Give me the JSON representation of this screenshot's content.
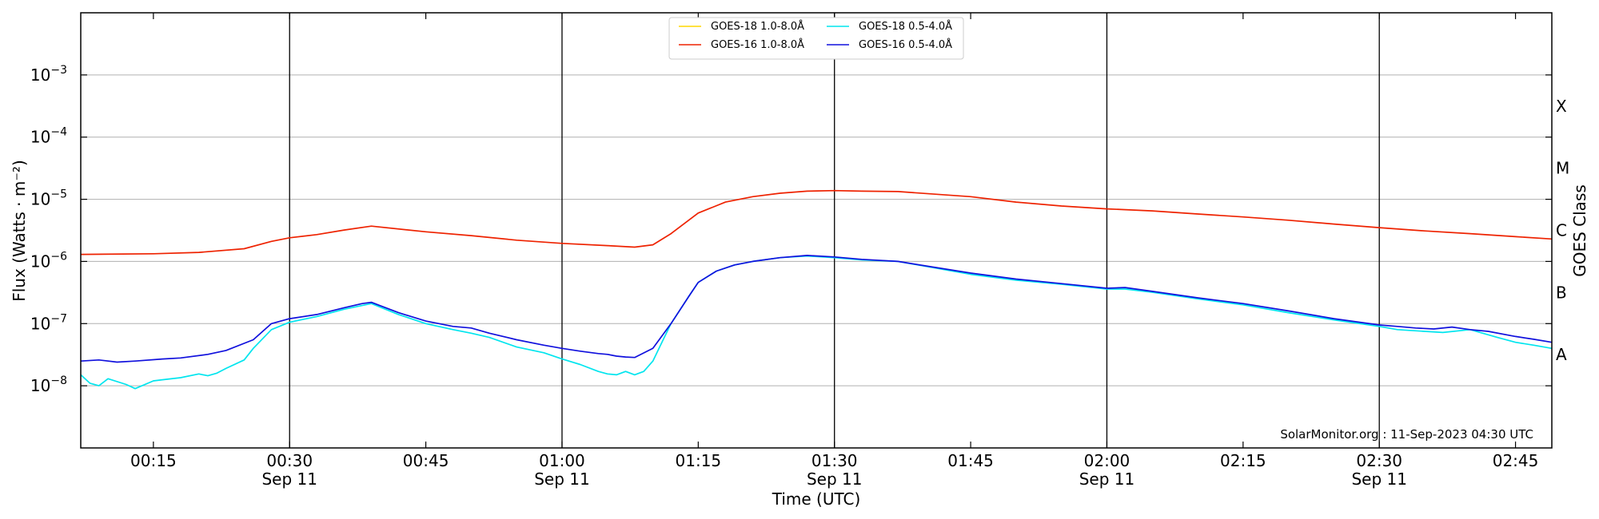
{
  "chart_data": {
    "type": "line",
    "title": "",
    "xlabel": "Time (UTC)",
    "ylabel": "Flux (Watts · m⁻²)",
    "y2label": "GOES Class",
    "yscale": "log",
    "ylim": [
      1e-09,
      0.01
    ],
    "xlim": [
      "00:07",
      "02:49"
    ],
    "grid": "horizontal",
    "legend_position": "top-center",
    "credit": "SolarMonitor.org : 11-Sep-2023 04:30 UTC",
    "y_ticks": [
      {
        "value": 1e-08,
        "base": "10",
        "exp": "−8"
      },
      {
        "value": 1e-07,
        "base": "10",
        "exp": "−7"
      },
      {
        "value": 1e-06,
        "base": "10",
        "exp": "−6"
      },
      {
        "value": 1e-05,
        "base": "10",
        "exp": "−5"
      },
      {
        "value": 0.0001,
        "base": "10",
        "exp": "−4"
      },
      {
        "value": 0.001,
        "base": "10",
        "exp": "−3"
      }
    ],
    "x_ticks": [
      {
        "time": "00:15",
        "label": "00:15",
        "date": ""
      },
      {
        "time": "00:30",
        "label": "00:30",
        "date": "Sep 11"
      },
      {
        "time": "00:45",
        "label": "00:45",
        "date": ""
      },
      {
        "time": "01:00",
        "label": "01:00",
        "date": "Sep 11"
      },
      {
        "time": "01:15",
        "label": "01:15",
        "date": ""
      },
      {
        "time": "01:30",
        "label": "01:30",
        "date": "Sep 11"
      },
      {
        "time": "01:45",
        "label": "01:45",
        "date": ""
      },
      {
        "time": "02:00",
        "label": "02:00",
        "date": "Sep 11"
      },
      {
        "time": "02:15",
        "label": "02:15",
        "date": ""
      },
      {
        "time": "02:30",
        "label": "02:30",
        "date": "Sep 11"
      },
      {
        "time": "02:45",
        "label": "02:45",
        "date": ""
      }
    ],
    "vlines": [
      "00:30",
      "01:00",
      "01:30",
      "02:00",
      "02:30"
    ],
    "goes_classes": [
      {
        "label": "A",
        "value": 1e-08
      },
      {
        "label": "B",
        "value": 1e-07
      },
      {
        "label": "C",
        "value": 1e-06
      },
      {
        "label": "M",
        "value": 1e-05
      },
      {
        "label": "X",
        "value": 0.0001
      }
    ],
    "series": [
      {
        "name": "GOES-18 1.0-8.0Å",
        "color": "#ffd700",
        "x": [],
        "y": []
      },
      {
        "name": "GOES-16 1.0-8.0Å",
        "color": "#ee2200",
        "x": [
          "00:07",
          "00:15",
          "00:20",
          "00:25",
          "00:28",
          "00:30",
          "00:33",
          "00:36",
          "00:39",
          "00:45",
          "00:50",
          "00:55",
          "01:00",
          "01:05",
          "01:08",
          "01:10",
          "01:12",
          "01:15",
          "01:18",
          "01:21",
          "01:24",
          "01:27",
          "01:30",
          "01:33",
          "01:37",
          "01:45",
          "01:50",
          "01:55",
          "02:00",
          "02:05",
          "02:10",
          "02:15",
          "02:20",
          "02:25",
          "02:30",
          "02:35",
          "02:40",
          "02:45",
          "02:49"
        ],
        "y": [
          1.3e-06,
          1.33e-06,
          1.4e-06,
          1.6e-06,
          2.1e-06,
          2.4e-06,
          2.7e-06,
          3.2e-06,
          3.7e-06,
          3e-06,
          2.6e-06,
          2.2e-06,
          1.95e-06,
          1.8e-06,
          1.7e-06,
          1.85e-06,
          2.8e-06,
          6e-06,
          9e-06,
          1.1e-05,
          1.25e-05,
          1.35e-05,
          1.38e-05,
          1.35e-05,
          1.33e-05,
          1.1e-05,
          9e-06,
          7.8e-06,
          7e-06,
          6.5e-06,
          5.8e-06,
          5.2e-06,
          4.6e-06,
          4e-06,
          3.5e-06,
          3.1e-06,
          2.8e-06,
          2.5e-06,
          2.3e-06
        ]
      },
      {
        "name": "GOES-18 0.5-4.0Å",
        "color": "#00e5ee",
        "x": [
          "00:07",
          "00:08",
          "00:09",
          "00:10",
          "00:12",
          "00:13",
          "00:15",
          "00:16",
          "00:18",
          "00:20",
          "00:21",
          "00:22",
          "00:23",
          "00:25",
          "00:26",
          "00:28",
          "00:30",
          "00:33",
          "00:36",
          "00:39",
          "00:42",
          "00:45",
          "00:48",
          "00:50",
          "00:52",
          "00:55",
          "00:58",
          "01:00",
          "01:02",
          "01:04",
          "01:05",
          "01:06",
          "01:07",
          "01:08",
          "01:09",
          "01:10",
          "01:11",
          "01:12",
          "01:14",
          "01:15",
          "01:17",
          "01:19",
          "01:21",
          "01:24",
          "01:27",
          "01:30",
          "01:33",
          "01:37",
          "01:45",
          "01:50",
          "01:55",
          "02:00",
          "02:02",
          "02:05",
          "02:10",
          "02:15",
          "02:20",
          "02:25",
          "02:30",
          "02:32",
          "02:35",
          "02:37",
          "02:40",
          "02:43",
          "02:45",
          "02:47",
          "02:49"
        ],
        "y": [
          1.5e-08,
          1.1e-08,
          1e-08,
          1.3e-08,
          1.05e-08,
          9e-09,
          1.2e-08,
          1.25e-08,
          1.35e-08,
          1.55e-08,
          1.45e-08,
          1.6e-08,
          1.9e-08,
          2.6e-08,
          4e-08,
          8e-08,
          1.05e-07,
          1.3e-07,
          1.7e-07,
          2.1e-07,
          1.4e-07,
          1e-07,
          8e-08,
          7e-08,
          6e-08,
          4.2e-08,
          3.4e-08,
          2.7e-08,
          2.2e-08,
          1.7e-08,
          1.55e-08,
          1.5e-08,
          1.7e-08,
          1.5e-08,
          1.7e-08,
          2.5e-08,
          5e-08,
          1e-07,
          2.8e-07,
          4.6e-07,
          7e-07,
          8.8e-07,
          1e-06,
          1.15e-06,
          1.22e-06,
          1.15e-06,
          1.06e-06,
          1e-06,
          6.2e-07,
          5e-07,
          4.3e-07,
          3.6e-07,
          3.6e-07,
          3.2e-07,
          2.5e-07,
          2e-07,
          1.5e-07,
          1.15e-07,
          9e-08,
          8e-08,
          7.5e-08,
          7.2e-08,
          8e-08,
          6e-08,
          5e-08,
          4.5e-08,
          4e-08
        ]
      },
      {
        "name": "GOES-16 0.5-4.0Å",
        "color": "#1010dd",
        "x": [
          "00:07",
          "00:09",
          "00:11",
          "00:13",
          "00:16",
          "00:18",
          "00:21",
          "00:23",
          "00:26",
          "00:28",
          "00:30",
          "00:33",
          "00:36",
          "00:38",
          "00:39",
          "00:42",
          "00:45",
          "00:48",
          "00:50",
          "00:52",
          "00:55",
          "00:58",
          "01:00",
          "01:02",
          "01:04",
          "01:05",
          "01:06",
          "01:07",
          "01:08",
          "01:10",
          "01:12",
          "01:14",
          "01:15",
          "01:17",
          "01:19",
          "01:21",
          "01:24",
          "01:27",
          "01:30",
          "01:33",
          "01:37",
          "01:45",
          "01:50",
          "01:55",
          "02:00",
          "02:02",
          "02:05",
          "02:10",
          "02:15",
          "02:20",
          "02:25",
          "02:30",
          "02:32",
          "02:34",
          "02:36",
          "02:38",
          "02:40",
          "02:42",
          "02:45",
          "02:47",
          "02:49"
        ],
        "y": [
          2.5e-08,
          2.6e-08,
          2.4e-08,
          2.5e-08,
          2.7e-08,
          2.8e-08,
          3.2e-08,
          3.7e-08,
          5.5e-08,
          1e-07,
          1.2e-07,
          1.4e-07,
          1.8e-07,
          2.1e-07,
          2.2e-07,
          1.5e-07,
          1.1e-07,
          9e-08,
          8.5e-08,
          7e-08,
          5.5e-08,
          4.5e-08,
          4e-08,
          3.6e-08,
          3.3e-08,
          3.2e-08,
          3e-08,
          2.9e-08,
          2.85e-08,
          4e-08,
          1e-07,
          2.8e-07,
          4.6e-07,
          7e-07,
          8.8e-07,
          1e-06,
          1.15e-06,
          1.25e-06,
          1.18e-06,
          1.08e-06,
          1e-06,
          6.5e-07,
          5.2e-07,
          4.4e-07,
          3.7e-07,
          3.8e-07,
          3.3e-07,
          2.6e-07,
          2.1e-07,
          1.6e-07,
          1.2e-07,
          9.5e-08,
          9e-08,
          8.5e-08,
          8.2e-08,
          8.8e-08,
          8e-08,
          7.5e-08,
          6.2e-08,
          5.6e-08,
          5e-08
        ]
      }
    ]
  }
}
